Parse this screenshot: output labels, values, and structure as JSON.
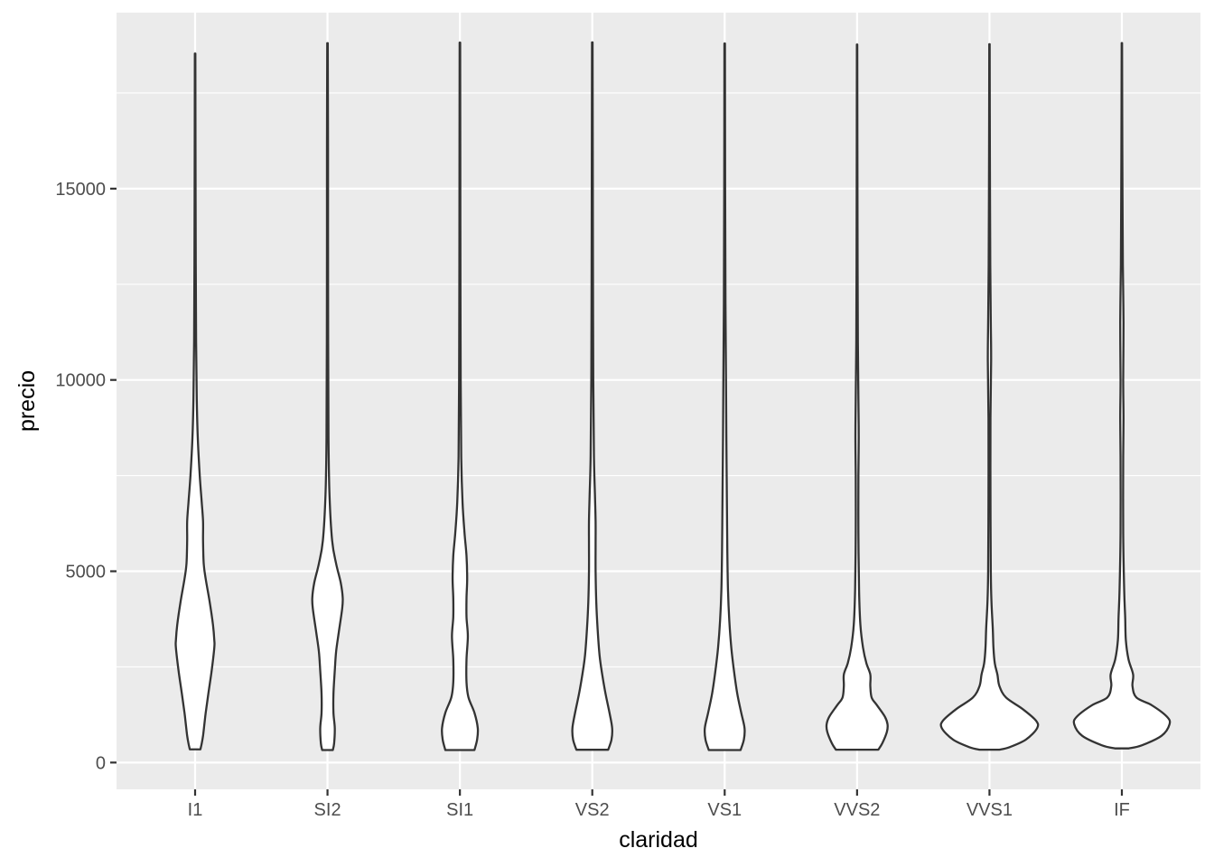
{
  "chart_data": {
    "type": "violin",
    "title": "",
    "xlabel": "claridad",
    "ylabel": "precio",
    "categories": [
      "I1",
      "SI2",
      "SI1",
      "VS2",
      "VS1",
      "VVS2",
      "VVS1",
      "IF"
    ],
    "ylim": [
      -700,
      19600
    ],
    "yticks": [
      0,
      5000,
      10000,
      15000
    ],
    "ytick_labels": [
      "0",
      "5000",
      "10000",
      "15000"
    ],
    "grid": true,
    "legend": "none",
    "colors": {
      "panel": "#ebebeb",
      "grid": "#ffffff",
      "violin_fill": "#ffffff",
      "violin_stroke": "#333333",
      "tick": "#333333",
      "tick_label": "#4d4d4d"
    },
    "violins": [
      {
        "category": "I1",
        "min": 345,
        "max": 18531,
        "profile": [
          [
            345,
            0.08
          ],
          [
            500,
            0.1
          ],
          [
            700,
            0.12
          ],
          [
            1000,
            0.14
          ],
          [
            1300,
            0.16
          ],
          [
            1800,
            0.2
          ],
          [
            2400,
            0.25
          ],
          [
            3000,
            0.29
          ],
          [
            3200,
            0.29
          ],
          [
            3600,
            0.27
          ],
          [
            4200,
            0.22
          ],
          [
            4800,
            0.16
          ],
          [
            5200,
            0.13
          ],
          [
            5800,
            0.12
          ],
          [
            6300,
            0.12
          ],
          [
            6800,
            0.1
          ],
          [
            7500,
            0.07
          ],
          [
            8500,
            0.04
          ],
          [
            9500,
            0.025
          ],
          [
            11000,
            0.015
          ],
          [
            13000,
            0.01
          ],
          [
            16000,
            0.006
          ],
          [
            18531,
            0.004
          ]
        ]
      },
      {
        "category": "SI2",
        "min": 326,
        "max": 18804,
        "profile": [
          [
            326,
            0.08
          ],
          [
            500,
            0.1
          ],
          [
            900,
            0.11
          ],
          [
            1300,
            0.09
          ],
          [
            1800,
            0.09
          ],
          [
            2400,
            0.11
          ],
          [
            2900,
            0.13
          ],
          [
            3400,
            0.17
          ],
          [
            4000,
            0.22
          ],
          [
            4300,
            0.23
          ],
          [
            4700,
            0.2
          ],
          [
            5200,
            0.13
          ],
          [
            5800,
            0.07
          ],
          [
            7000,
            0.03
          ],
          [
            8500,
            0.015
          ],
          [
            11000,
            0.01
          ],
          [
            14000,
            0.008
          ],
          [
            16000,
            0.008
          ],
          [
            18804,
            0.004
          ]
        ]
      },
      {
        "category": "SI1",
        "min": 326,
        "max": 18818,
        "profile": [
          [
            326,
            0.22
          ],
          [
            600,
            0.26
          ],
          [
            900,
            0.27
          ],
          [
            1300,
            0.22
          ],
          [
            1700,
            0.13
          ],
          [
            2100,
            0.1
          ],
          [
            2700,
            0.1
          ],
          [
            3300,
            0.12
          ],
          [
            3800,
            0.1
          ],
          [
            4300,
            0.1
          ],
          [
            4800,
            0.11
          ],
          [
            5400,
            0.1
          ],
          [
            6000,
            0.07
          ],
          [
            6800,
            0.04
          ],
          [
            8000,
            0.02
          ],
          [
            10000,
            0.012
          ],
          [
            13000,
            0.008
          ],
          [
            16000,
            0.006
          ],
          [
            18818,
            0.004
          ]
        ]
      },
      {
        "category": "VS2",
        "min": 334,
        "max": 18823,
        "profile": [
          [
            334,
            0.24
          ],
          [
            600,
            0.29
          ],
          [
            900,
            0.3
          ],
          [
            1300,
            0.26
          ],
          [
            1800,
            0.2
          ],
          [
            2300,
            0.15
          ],
          [
            2800,
            0.11
          ],
          [
            3500,
            0.08
          ],
          [
            4200,
            0.06
          ],
          [
            5000,
            0.05
          ],
          [
            5700,
            0.05
          ],
          [
            6300,
            0.05
          ],
          [
            7000,
            0.04
          ],
          [
            8000,
            0.025
          ],
          [
            10000,
            0.015
          ],
          [
            13000,
            0.01
          ],
          [
            16000,
            0.007
          ],
          [
            18823,
            0.004
          ]
        ]
      },
      {
        "category": "VS1",
        "min": 327,
        "max": 18795,
        "profile": [
          [
            327,
            0.24
          ],
          [
            600,
            0.29
          ],
          [
            900,
            0.3
          ],
          [
            1300,
            0.25
          ],
          [
            1800,
            0.19
          ],
          [
            2400,
            0.14
          ],
          [
            3000,
            0.1
          ],
          [
            3700,
            0.07
          ],
          [
            4500,
            0.05
          ],
          [
            5500,
            0.04
          ],
          [
            6500,
            0.035
          ],
          [
            7500,
            0.03
          ],
          [
            8500,
            0.025
          ],
          [
            10000,
            0.02
          ],
          [
            12000,
            0.012
          ],
          [
            15000,
            0.007
          ],
          [
            18795,
            0.004
          ]
        ]
      },
      {
        "category": "VVS2",
        "min": 336,
        "max": 18768,
        "profile": [
          [
            336,
            0.32
          ],
          [
            500,
            0.38
          ],
          [
            800,
            0.45
          ],
          [
            1000,
            0.46
          ],
          [
            1200,
            0.42
          ],
          [
            1500,
            0.3
          ],
          [
            1700,
            0.22
          ],
          [
            2000,
            0.2
          ],
          [
            2300,
            0.2
          ],
          [
            2600,
            0.14
          ],
          [
            3000,
            0.09
          ],
          [
            3600,
            0.05
          ],
          [
            4500,
            0.03
          ],
          [
            6000,
            0.02
          ],
          [
            7500,
            0.02
          ],
          [
            8500,
            0.025
          ],
          [
            9500,
            0.02
          ],
          [
            11000,
            0.012
          ],
          [
            13000,
            0.008
          ],
          [
            16000,
            0.005
          ],
          [
            18768,
            0.003
          ]
        ]
      },
      {
        "category": "VVS1",
        "min": 336,
        "max": 18777,
        "profile": [
          [
            336,
            0.15
          ],
          [
            400,
            0.3
          ],
          [
            600,
            0.55
          ],
          [
            900,
            0.72
          ],
          [
            1100,
            0.7
          ],
          [
            1400,
            0.5
          ],
          [
            1700,
            0.25
          ],
          [
            2000,
            0.15
          ],
          [
            2300,
            0.12
          ],
          [
            2600,
            0.08
          ],
          [
            3000,
            0.06
          ],
          [
            3500,
            0.05
          ],
          [
            4200,
            0.03
          ],
          [
            5000,
            0.02
          ],
          [
            7000,
            0.015
          ],
          [
            9000,
            0.015
          ],
          [
            10500,
            0.025
          ],
          [
            11500,
            0.02
          ],
          [
            13000,
            0.012
          ],
          [
            16000,
            0.006
          ],
          [
            18777,
            0.003
          ]
        ]
      },
      {
        "category": "IF",
        "min": 369,
        "max": 18806,
        "profile": [
          [
            369,
            0.1
          ],
          [
            450,
            0.3
          ],
          [
            700,
            0.6
          ],
          [
            1000,
            0.72
          ],
          [
            1200,
            0.68
          ],
          [
            1500,
            0.45
          ],
          [
            1700,
            0.22
          ],
          [
            2000,
            0.16
          ],
          [
            2300,
            0.17
          ],
          [
            2700,
            0.1
          ],
          [
            3200,
            0.06
          ],
          [
            3800,
            0.05
          ],
          [
            4500,
            0.035
          ],
          [
            6000,
            0.02
          ],
          [
            8000,
            0.02
          ],
          [
            9000,
            0.025
          ],
          [
            10000,
            0.02
          ],
          [
            11500,
            0.025
          ],
          [
            13000,
            0.015
          ],
          [
            16000,
            0.007
          ],
          [
            18806,
            0.003
          ]
        ]
      }
    ]
  }
}
